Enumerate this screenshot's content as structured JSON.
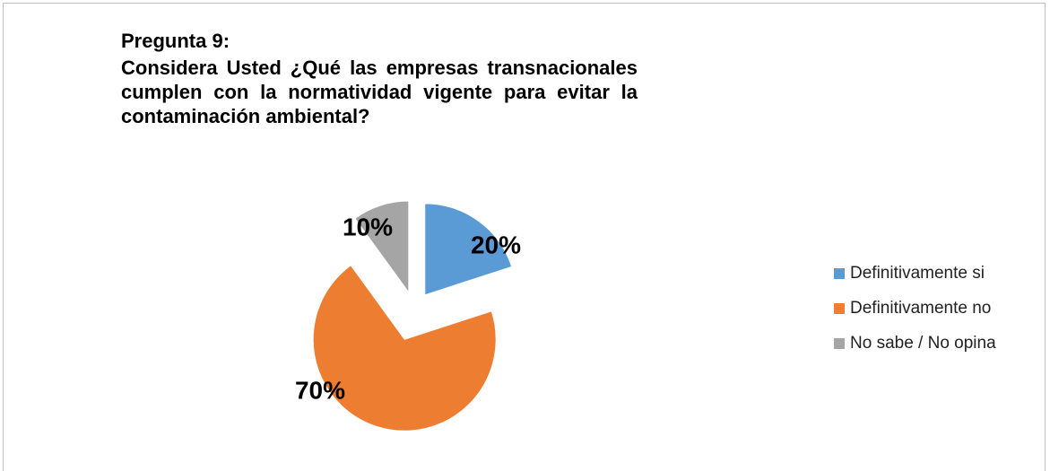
{
  "chart_data": {
    "type": "pie",
    "title": "Pregunta 9:",
    "subtitle": "Considera Usted ¿Qué las empresas transnacionales cumplen con la normatividad vigente para evitar la contaminación ambiental?",
    "categories": [
      "Definitivamente si",
      "Definitivamente no",
      "No sabe / No opina"
    ],
    "values": [
      20,
      70,
      10
    ],
    "value_labels": [
      "20%",
      "70%",
      "10%"
    ],
    "colors": [
      "#5b9bd5",
      "#ed7d31",
      "#a5a5a5"
    ],
    "legend": "right"
  }
}
